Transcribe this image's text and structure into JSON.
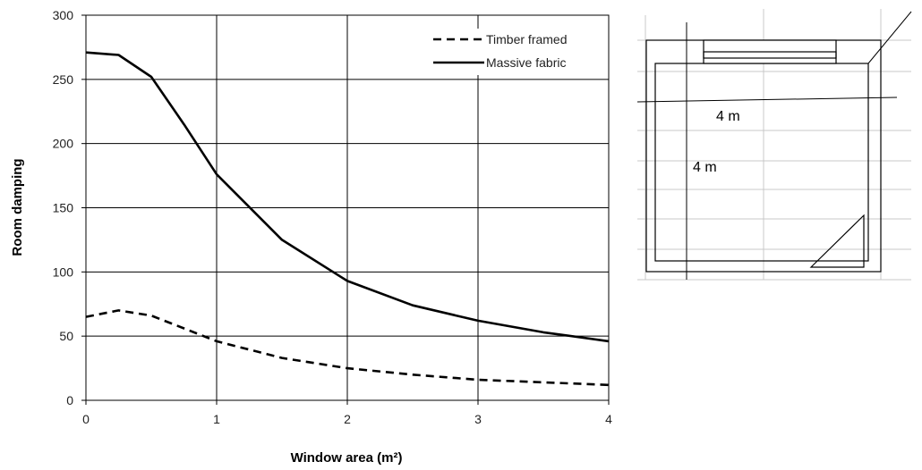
{
  "chart_data": {
    "type": "line",
    "title": "",
    "xlabel": "Window area (m²)",
    "ylabel": "Room damping",
    "xlim": [
      0,
      4
    ],
    "ylim": [
      0,
      300
    ],
    "x_ticks": [
      "0",
      "1",
      "2",
      "3",
      "4"
    ],
    "y_ticks": [
      "0",
      "50",
      "100",
      "150",
      "200",
      "250",
      "300"
    ],
    "grid": true,
    "legend_position": "top-right",
    "series": [
      {
        "name": "Timber framed",
        "style": "dashed",
        "color": "#000000",
        "x": [
          0,
          0.25,
          0.5,
          0.75,
          1,
          1.5,
          2,
          2.5,
          3,
          3.5,
          4
        ],
        "y": [
          65,
          70,
          66,
          56,
          46,
          33,
          25,
          20,
          16,
          14,
          12
        ]
      },
      {
        "name": "Massive fabric",
        "style": "solid",
        "color": "#000000",
        "x": [
          0,
          0.25,
          0.5,
          0.75,
          1,
          1.5,
          2,
          2.5,
          3,
          3.5,
          4
        ],
        "y": [
          271,
          269,
          252,
          215,
          176,
          125,
          93,
          74,
          62,
          53,
          46
        ]
      }
    ]
  },
  "floor_plan": {
    "width_label": "4 m",
    "depth_label": "4 m"
  }
}
